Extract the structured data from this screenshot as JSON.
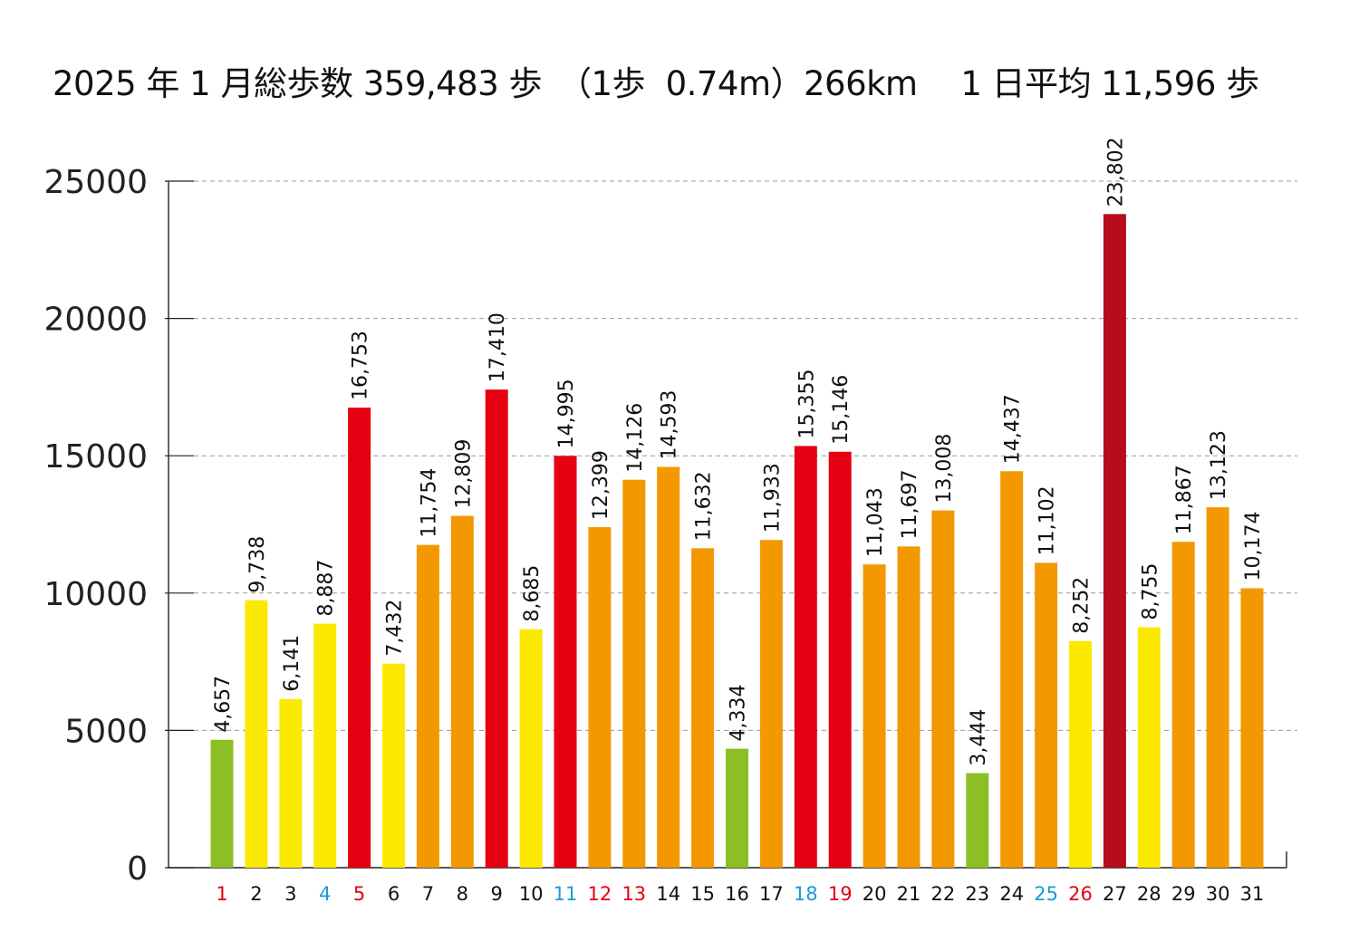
{
  "chart_data": {
    "type": "bar",
    "title": "2025 年 1 月総歩数 359,483 歩　（1歩  0.74m）266km　 1 日平均 11,596 歩",
    "xlabel": "",
    "ylabel": "",
    "ylim": [
      0,
      25000
    ],
    "yticks": [
      0,
      5000,
      10000,
      15000,
      20000,
      25000
    ],
    "grid": true,
    "categories": [
      "1",
      "2",
      "3",
      "4",
      "5",
      "6",
      "7",
      "8",
      "9",
      "10",
      "11",
      "12",
      "13",
      "14",
      "15",
      "16",
      "17",
      "18",
      "19",
      "20",
      "21",
      "22",
      "23",
      "24",
      "25",
      "26",
      "27",
      "28",
      "29",
      "30",
      "31"
    ],
    "values": [
      4657,
      9738,
      6141,
      8887,
      16753,
      7432,
      11754,
      12809,
      17410,
      8685,
      14995,
      12399,
      14126,
      14593,
      11632,
      4334,
      11933,
      15355,
      15146,
      11043,
      11697,
      13008,
      3444,
      14437,
      11102,
      8252,
      23802,
      8755,
      11867,
      13123,
      10174
    ],
    "data_labels": [
      "4,657",
      "9,738",
      "6,141",
      "8,887",
      "16,753",
      "7,432",
      "11,754",
      "12,809",
      "17,410",
      "8,685",
      "14,995",
      "12,399",
      "14,126",
      "14,593",
      "11,632",
      "4,334",
      "11,933",
      "15,355",
      "15,146",
      "11,043",
      "11,697",
      "13,008",
      "3,444",
      "14,437",
      "11,102",
      "8,252",
      "23,802",
      "8,755",
      "11,867",
      "13,123",
      "10,174"
    ],
    "bar_colors": [
      "#8cbf26",
      "#fbe900",
      "#fbe900",
      "#fbe900",
      "#e50012",
      "#fbe900",
      "#f39800",
      "#f39800",
      "#e50012",
      "#fbe900",
      "#e50012",
      "#f39800",
      "#f39800",
      "#f39800",
      "#f39800",
      "#8cbf26",
      "#f39800",
      "#e50012",
      "#e50012",
      "#f39800",
      "#f39800",
      "#f39800",
      "#8cbf26",
      "#f39800",
      "#f39800",
      "#fbe900",
      "#b50e1a",
      "#fbe900",
      "#f39800",
      "#f39800",
      "#f39800"
    ],
    "tick_colors": [
      "#e50012",
      "#111111",
      "#111111",
      "#1a9ad6",
      "#e50012",
      "#111111",
      "#111111",
      "#111111",
      "#111111",
      "#111111",
      "#1a9ad6",
      "#e50012",
      "#e50012",
      "#111111",
      "#111111",
      "#111111",
      "#111111",
      "#1a9ad6",
      "#e50012",
      "#111111",
      "#111111",
      "#111111",
      "#111111",
      "#111111",
      "#1a9ad6",
      "#e50012",
      "#111111",
      "#111111",
      "#111111",
      "#111111",
      "#111111"
    ]
  }
}
